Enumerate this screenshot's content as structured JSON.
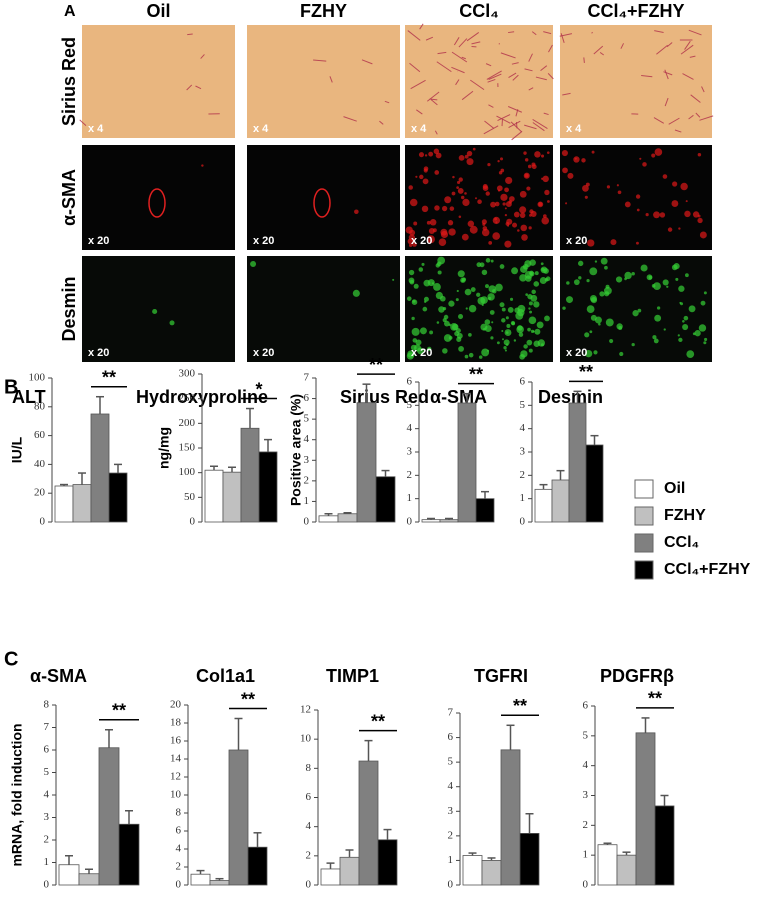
{
  "panel_labels": [
    "A",
    "B",
    "C"
  ],
  "panel_a": {
    "columns": [
      "Oil",
      "FZHY",
      "CCl₄",
      "CCl₄+FZHY"
    ],
    "rows": [
      {
        "label": "Sirius Red",
        "scale": "x 4"
      },
      {
        "label": "α-SMA",
        "scale": "x 20"
      },
      {
        "label": "Desmin",
        "scale": "x 20"
      }
    ]
  },
  "legend": [
    {
      "name": "Oil",
      "color": "#ffffff"
    },
    {
      "name": "FZHY",
      "color": "#c0c0c0"
    },
    {
      "name": "CCl₄",
      "color": "#808080"
    },
    {
      "name": "CCl₄+FZHY",
      "color": "#000000"
    }
  ],
  "chart_data": [
    {
      "type": "bar",
      "title": "ALT",
      "ylabel": "IU/L",
      "values": [
        25,
        26,
        75,
        34
      ],
      "errors": [
        1,
        8,
        12,
        6
      ],
      "ylim": [
        0,
        100
      ],
      "yticks": [
        0,
        20,
        40,
        60,
        80,
        100
      ],
      "annotation": "**"
    },
    {
      "type": "bar",
      "title": "Hydroxyproline",
      "ylabel": "ng/mg",
      "values": [
        105,
        101,
        190,
        142
      ],
      "errors": [
        8,
        10,
        40,
        25
      ],
      "ylim": [
        0,
        300
      ],
      "yticks": [
        0,
        50,
        100,
        150,
        200,
        250,
        300
      ],
      "annotation": "*"
    },
    {
      "type": "bar",
      "title": "Sirius Red",
      "ylabel": "Positive area (%)",
      "values": [
        0.3,
        0.4,
        5.8,
        2.2
      ],
      "errors": [
        0.1,
        0.05,
        0.9,
        0.3
      ],
      "ylim": [
        0,
        7
      ],
      "yticks": [
        0,
        1,
        2,
        3,
        4,
        5,
        6,
        7
      ],
      "annotation": "**"
    },
    {
      "type": "bar",
      "title": "α-SMA",
      "values": [
        0.1,
        0.1,
        5.1,
        1.0
      ],
      "errors": [
        0.05,
        0.05,
        0.4,
        0.3
      ],
      "ylim": [
        0,
        6
      ],
      "yticks": [
        0,
        1,
        2,
        3,
        4,
        5,
        6
      ],
      "annotation": "**"
    },
    {
      "type": "bar",
      "title": "Desmin",
      "values": [
        1.4,
        1.8,
        5.1,
        3.3
      ],
      "errors": [
        0.2,
        0.4,
        0.5,
        0.4
      ],
      "ylim": [
        0,
        6
      ],
      "yticks": [
        0,
        1,
        2,
        3,
        4,
        5,
        6
      ],
      "annotation": "**"
    },
    {
      "type": "bar",
      "title": "α-SMA",
      "ylabel": "mRNA, fold induction",
      "values": [
        0.9,
        0.5,
        6.1,
        2.7
      ],
      "errors": [
        0.4,
        0.2,
        0.8,
        0.6
      ],
      "ylim": [
        0,
        8
      ],
      "yticks": [
        0,
        1,
        2,
        3,
        4,
        5,
        6,
        7,
        8
      ],
      "annotation": "**"
    },
    {
      "type": "bar",
      "title": "Col1a1",
      "values": [
        1.2,
        0.5,
        15,
        4.2
      ],
      "errors": [
        0.4,
        0.2,
        3.5,
        1.6
      ],
      "ylim": [
        0,
        20
      ],
      "yticks": [
        0,
        2,
        4,
        6,
        8,
        10,
        12,
        14,
        16,
        18,
        20
      ],
      "annotation": "**"
    },
    {
      "type": "bar",
      "title": "TIMP1",
      "values": [
        1.1,
        1.9,
        8.5,
        3.1
      ],
      "errors": [
        0.4,
        0.5,
        1.4,
        0.7
      ],
      "ylim": [
        0,
        12
      ],
      "yticks": [
        0,
        2,
        4,
        6,
        8,
        10,
        12
      ],
      "annotation": "**"
    },
    {
      "type": "bar",
      "title": "TGFRI",
      "values": [
        1.2,
        1.0,
        5.5,
        2.1
      ],
      "errors": [
        0.1,
        0.1,
        1.0,
        0.8
      ],
      "ylim": [
        0,
        7
      ],
      "yticks": [
        0,
        1,
        2,
        3,
        4,
        5,
        6,
        7
      ],
      "annotation": "**"
    },
    {
      "type": "bar",
      "title": "PDGFRβ",
      "values": [
        1.35,
        1.0,
        5.1,
        2.65
      ],
      "errors": [
        0.05,
        0.1,
        0.5,
        0.35
      ],
      "ylim": [
        0,
        6
      ],
      "yticks": [
        0,
        1,
        2,
        3,
        4,
        5,
        6
      ],
      "annotation": "**"
    }
  ]
}
